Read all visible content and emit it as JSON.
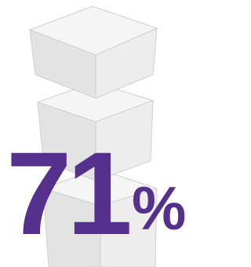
{
  "figure": {
    "number": "71",
    "symbol": "%"
  }
}
